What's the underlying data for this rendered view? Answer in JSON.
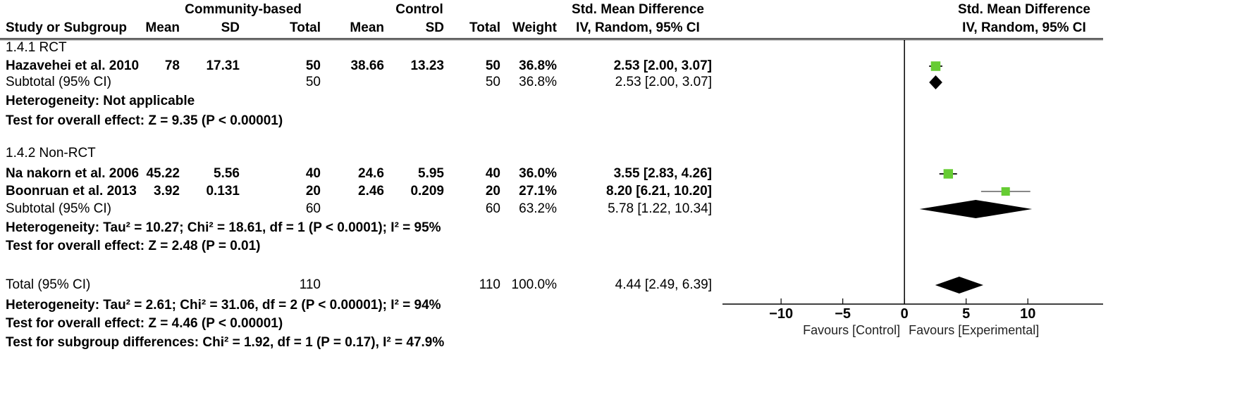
{
  "chart_data": {
    "type": "forest",
    "headers": {
      "group1": "Community-based",
      "group2": "Control",
      "effect_col": "Std. Mean Difference",
      "effect_sub": "IV, Random, 95% CI",
      "plot_title": "Std. Mean Difference",
      "plot_sub": "IV, Random, 95% CI",
      "study": "Study or Subgroup",
      "mean": "Mean",
      "sd": "SD",
      "total": "Total",
      "weight": "Weight"
    },
    "subgroups": [
      {
        "label": "1.4.1 RCT",
        "studies": [
          {
            "name": "Hazavehei et al. 2010",
            "e_mean": "78",
            "e_sd": "17.31",
            "e_total": "50",
            "c_mean": "38.66",
            "c_sd": "13.23",
            "c_total": "50",
            "weight": "36.8%",
            "ci_text": "2.53 [2.00, 3.07]",
            "est": 2.53,
            "lo": 2.0,
            "hi": 3.07,
            "w": 36.8
          }
        ],
        "subtotal": {
          "label": "Subtotal (95% CI)",
          "e_total": "50",
          "c_total": "50",
          "weight": "36.8%",
          "ci_text": "2.53 [2.00, 3.07]",
          "est": 2.53,
          "lo": 2.0,
          "hi": 3.07
        },
        "heterogeneity": "Heterogeneity: Not applicable",
        "overall": "Test for overall effect: Z = 9.35 (P < 0.00001)"
      },
      {
        "label": "1.4.2 Non-RCT",
        "studies": [
          {
            "name": "Na nakorn et al. 2006",
            "e_mean": "45.22",
            "e_sd": "5.56",
            "e_total": "40",
            "c_mean": "24.6",
            "c_sd": "5.95",
            "c_total": "40",
            "weight": "36.0%",
            "ci_text": "3.55 [2.83, 4.26]",
            "est": 3.55,
            "lo": 2.83,
            "hi": 4.26,
            "w": 36.0
          },
          {
            "name": "Boonruan et al. 2013",
            "e_mean": "3.92",
            "e_sd": "0.131",
            "e_total": "20",
            "c_mean": "2.46",
            "c_sd": "0.209",
            "c_total": "20",
            "weight": "27.1%",
            "ci_text": "8.20 [6.21, 10.20]",
            "est": 8.2,
            "lo": 6.21,
            "hi": 10.2,
            "w": 27.1
          }
        ],
        "subtotal": {
          "label": "Subtotal (95% CI)",
          "e_total": "60",
          "c_total": "60",
          "weight": "63.2%",
          "ci_text": "5.78 [1.22, 10.34]",
          "est": 5.78,
          "lo": 1.22,
          "hi": 10.34
        },
        "heterogeneity": "Heterogeneity: Tau² = 10.27; Chi² = 18.61, df = 1 (P < 0.0001); I² = 95%",
        "overall": "Test for overall effect: Z = 2.48 (P = 0.01)"
      }
    ],
    "total": {
      "label": "Total (95% CI)",
      "e_total": "110",
      "c_total": "110",
      "weight": "100.0%",
      "ci_text": "4.44 [2.49, 6.39]",
      "est": 4.44,
      "lo": 2.49,
      "hi": 6.39
    },
    "total_heterogeneity": "Heterogeneity: Tau² = 2.61; Chi² = 31.06, df = 2 (P < 0.00001); I² = 94%",
    "total_overall": "Test for overall effect: Z = 4.46 (P < 0.00001)",
    "subgroup_diff": "Test for subgroup differences: Chi² = 1.92, df = 1 (P = 0.17), I² = 47.9%",
    "x_ticks": [
      -10,
      -5,
      0,
      5,
      10
    ],
    "x_tick_labels": [
      "−10",
      "−5",
      "0",
      "5",
      "10"
    ],
    "xlim": [
      -14.75,
      16.1
    ],
    "favours_left": "Favours [Control]",
    "favours_right": "Favours [Experimental]",
    "colors": {
      "study_marker": "#66cc33",
      "ci_line": "#222222",
      "wide_ci_line": "#888888",
      "diamond": "#000000"
    }
  }
}
